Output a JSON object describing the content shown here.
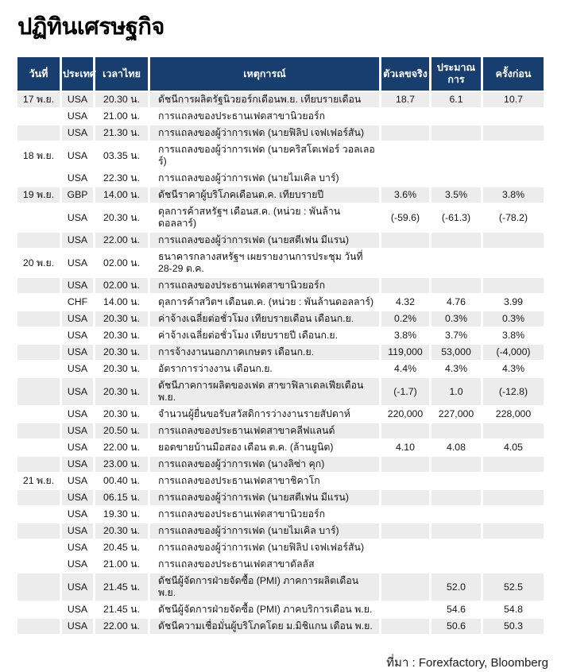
{
  "page_title": "ปฏิทินเศรษฐกิจ",
  "source_note": "ที่มา : Forexfactory, Bloomberg",
  "colors": {
    "header_bg": "#173E6E",
    "header_text": "#FFFFFF",
    "row_alt_bg": "#ECECEC"
  },
  "table": {
    "columns": [
      {
        "key": "date",
        "label": "วันที่"
      },
      {
        "key": "country",
        "label": "ประเทศ"
      },
      {
        "key": "time",
        "label": "เวลาไทย"
      },
      {
        "key": "event",
        "label": "เหตุการณ์"
      },
      {
        "key": "actual",
        "label": "ตัวเลขจริง"
      },
      {
        "key": "forecast",
        "label": "ประมาณการ"
      },
      {
        "key": "previous",
        "label": "ครั้งก่อน"
      }
    ],
    "rows": [
      {
        "date": "17 พ.ย.",
        "country": "USA",
        "time": "20.30 น.",
        "event": "ดัชนีการผลิตรัฐนิวยอร์กเดือนพ.ย. เทียบรายเดือน",
        "actual": "18.7",
        "forecast": "6.1",
        "previous": "10.7",
        "shaded": true
      },
      {
        "date": "",
        "country": "USA",
        "time": "21.00 น.",
        "event": "การแถลงของประธานเฟดสาขานิวยอร์ก",
        "actual": "",
        "forecast": "",
        "previous": "",
        "shaded": false
      },
      {
        "date": "",
        "country": "USA",
        "time": "21.30 น.",
        "event": "การแถลงของผู้ว่าการเฟด (นายฟิลิป เจฟเฟอร์สัน)",
        "actual": "",
        "forecast": "",
        "previous": "",
        "shaded": true
      },
      {
        "date": "18 พ.ย.",
        "country": "USA",
        "time": "03.35 น.",
        "event": "การแถลงของผู้ว่าการเฟด (นายคริสโตเฟอร์ วอลเลอร์)",
        "actual": "",
        "forecast": "",
        "previous": "",
        "shaded": false
      },
      {
        "date": "",
        "country": "USA",
        "time": "22.30 น.",
        "event": "การแถลงของผู้ว่าการเฟด (นายไมเคิล บาร์)",
        "actual": "",
        "forecast": "",
        "previous": "",
        "shaded": false
      },
      {
        "date": "19 พ.ย.",
        "country": "GBP",
        "time": "14.00 น.",
        "event": "ดัชนีราคาผู้บริโภคเดือนต.ค. เทียบรายปี",
        "actual": "3.6%",
        "forecast": "3.5%",
        "previous": "3.8%",
        "shaded": true
      },
      {
        "date": "",
        "country": "USA",
        "time": "20.30 น.",
        "event": "ดุลการค้าสหรัฐฯ เดือนส.ค. (หน่วย : พันล้านดอลลาร์)",
        "actual": "(-59.6)",
        "forecast": "(-61.3)",
        "previous": "(-78.2)",
        "shaded": false
      },
      {
        "date": "",
        "country": "USA",
        "time": "22.00 น.",
        "event": "การแถลงของผู้ว่าการเฟด (นายสตีเฟน มีแรน)",
        "actual": "",
        "forecast": "",
        "previous": "",
        "shaded": true
      },
      {
        "date": "20 พ.ย.",
        "country": "USA",
        "time": "02.00 น.",
        "event": "ธนาคารกลางสหรัฐฯ เผยรายงานการประชุม วันที่\n28-29 ต.ค.",
        "actual": "",
        "forecast": "",
        "previous": "",
        "shaded": false
      },
      {
        "date": "",
        "country": "USA",
        "time": "02.00 น.",
        "event": "การแถลงของประธานเฟดสาขานิวยอร์ก",
        "actual": "",
        "forecast": "",
        "previous": "",
        "shaded": true
      },
      {
        "date": "",
        "country": "CHF",
        "time": "14.00 น.",
        "event": "ดุลการค้าสวิตฯ เดือนต.ค. (หน่วย : พันล้านดอลลาร์)",
        "actual": "4.32",
        "forecast": "4.76",
        "previous": "3.99",
        "shaded": false
      },
      {
        "date": "",
        "country": "USA",
        "time": "20.30 น.",
        "event": "ค่าจ้างเฉลี่ยต่อชั่วโมง เทียบรายเดือน เดือนก.ย.",
        "actual": "0.2%",
        "forecast": "0.3%",
        "previous": "0.3%",
        "shaded": true
      },
      {
        "date": "",
        "country": "USA",
        "time": "20.30 น.",
        "event": "ค่าจ้างเฉลี่ยต่อชั่วโมง เทียบรายปี เดือนก.ย.",
        "actual": "3.8%",
        "forecast": "3.7%",
        "previous": "3.8%",
        "shaded": false
      },
      {
        "date": "",
        "country": "USA",
        "time": "20.30 น.",
        "event": "การจ้างงานนอกภาคเกษตร เดือนก.ย.",
        "actual": "119,000",
        "forecast": "53,000",
        "previous": "(-4,000)",
        "shaded": true
      },
      {
        "date": "",
        "country": "USA",
        "time": "20.30 น.",
        "event": "อัตราการว่างงาน เดือนก.ย.",
        "actual": "4.4%",
        "forecast": "4.3%",
        "previous": "4.3%",
        "shaded": false
      },
      {
        "date": "",
        "country": "USA",
        "time": "20.30 น.",
        "event": "ดัชนีภาคการผลิตของเฟด สาขาฟิลาเดลเฟียเดือน พ.ย.",
        "actual": "(-1.7)",
        "forecast": "1.0",
        "previous": "(-12.8)",
        "shaded": true
      },
      {
        "date": "",
        "country": "USA",
        "time": "20.30 น.",
        "event": "จำนวนผู้ยื่นขอรับสวัสดิการว่างงานรายสัปดาห์",
        "actual": "220,000",
        "forecast": "227,000",
        "previous": "228,000",
        "shaded": false
      },
      {
        "date": "",
        "country": "USA",
        "time": "20.50 น.",
        "event": "การแถลงของประธานเฟดสาขาคลีฟแลนด์",
        "actual": "",
        "forecast": "",
        "previous": "",
        "shaded": true
      },
      {
        "date": "",
        "country": "USA",
        "time": "22.00 น.",
        "event": "ยอดขายบ้านมือสอง เดือน ต.ค. (ล้านยูนิต)",
        "actual": "4.10",
        "forecast": "4.08",
        "previous": "4.05",
        "shaded": false
      },
      {
        "date": "",
        "country": "USA",
        "time": "23.00 น.",
        "event": "การแถลงของผู้ว่าการเฟด (นางลิซ่า คุก)",
        "actual": "",
        "forecast": "",
        "previous": "",
        "shaded": true
      },
      {
        "date": "21 พ.ย.",
        "country": "USA",
        "time": "00.40 น.",
        "event": "การแถลงของประธานเฟดสาขาชิคาโก",
        "actual": "",
        "forecast": "",
        "previous": "",
        "shaded": false
      },
      {
        "date": "",
        "country": "USA",
        "time": "06.15 น.",
        "event": "การแถลงของผู้ว่าการเฟด (นายสตีเฟน มีแรน)",
        "actual": "",
        "forecast": "",
        "previous": "",
        "shaded": true
      },
      {
        "date": "",
        "country": "USA",
        "time": "19.30 น.",
        "event": "การแถลงของประธานเฟดสาขานิวยอร์ก",
        "actual": "",
        "forecast": "",
        "previous": "",
        "shaded": false
      },
      {
        "date": "",
        "country": "USA",
        "time": "20.30 น.",
        "event": "การแถลงของผู้ว่าการเฟด (นายไมเคิล บาร์)",
        "actual": "",
        "forecast": "",
        "previous": "",
        "shaded": true
      },
      {
        "date": "",
        "country": "USA",
        "time": "20.45 น.",
        "event": "การแถลงของผู้ว่าการเฟด (นายฟิลิป เจฟเฟอร์สัน)",
        "actual": "",
        "forecast": "",
        "previous": "",
        "shaded": false
      },
      {
        "date": "",
        "country": "USA",
        "time": "21.00 น.",
        "event": "การแถลงของประธานเฟดสาขาดัลลัส",
        "actual": "",
        "forecast": "",
        "previous": "",
        "shaded": false
      },
      {
        "date": "",
        "country": "USA",
        "time": "21.45 น.",
        "event": "ดัชนีผู้จัดการฝ่ายจัดซื้อ (PMI) ภาคการผลิตเดือน พ.ย.",
        "actual": "",
        "forecast": "52.0",
        "previous": "52.5",
        "shaded": true
      },
      {
        "date": "",
        "country": "USA",
        "time": "21.45 น.",
        "event": "ดัชนีผู้จัดการฝ่ายจัดซื้อ (PMI) ภาคบริการเดือน พ.ย.",
        "actual": "",
        "forecast": "54.6",
        "previous": "54.8",
        "shaded": false
      },
      {
        "date": "",
        "country": "USA",
        "time": "22.00 น.",
        "event": "ดัชนีความเชื่อมั่นผู้บริโภคโดย ม.มิชิแกน เดือน พ.ย.",
        "actual": "",
        "forecast": "50.6",
        "previous": "50.3",
        "shaded": true
      }
    ]
  }
}
